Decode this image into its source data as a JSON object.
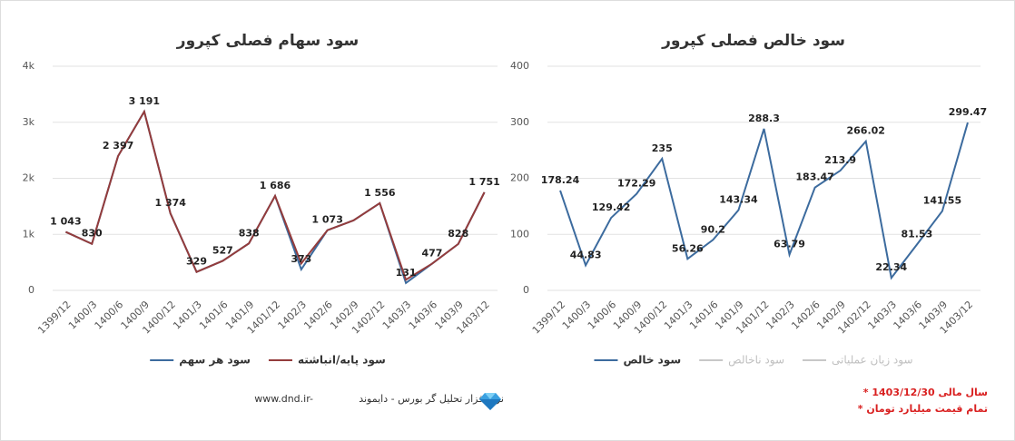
{
  "chart_data": [
    {
      "type": "line",
      "title": "سود سهام فصلی کپرور",
      "categories": [
        "1399/12",
        "1400/3",
        "1400/6",
        "1400/9",
        "1400/12",
        "1401/3",
        "1401/6",
        "1401/9",
        "1401/12",
        "1402/3",
        "1402/6",
        "1402/9",
        "1402/12",
        "1403/3",
        "1403/6",
        "1403/9",
        "1403/12"
      ],
      "series": [
        {
          "name": "سود هر سهم",
          "color": "#3c6b9e",
          "values": [
            1043,
            830,
            2397,
            3191,
            1374,
            329,
            527,
            838,
            1686,
            373,
            1073,
            1250,
            1556,
            131,
            477,
            828,
            1751
          ],
          "value_labels": [
            "1 043",
            "830",
            "2 397",
            "3 191",
            "1 374",
            "329",
            "527",
            "838",
            "1 686",
            "373",
            "1 073",
            null,
            "1 556",
            "131",
            "477",
            "828",
            "1 751"
          ]
        },
        {
          "name": "سود پایه/انباشته",
          "color": "#943c3c",
          "values": [
            1043,
            830,
            2397,
            3191,
            1374,
            329,
            527,
            838,
            1686,
            480,
            1073,
            1250,
            1556,
            190,
            477,
            828,
            1751
          ]
        }
      ],
      "ylim": [
        0,
        4000
      ],
      "yticks": [
        0,
        {
          "value": 1000,
          "label": "1k"
        },
        {
          "value": 2000,
          "label": "2k"
        },
        {
          "value": 3000,
          "label": "3k"
        },
        {
          "value": 4000,
          "label": "4k"
        }
      ],
      "grid": true
    },
    {
      "type": "line",
      "title": "سود خالص فصلی کپرور",
      "categories": [
        "1399/12",
        "1400/3",
        "1400/6",
        "1400/9",
        "1400/12",
        "1401/3",
        "1401/6",
        "1401/9",
        "1401/12",
        "1402/3",
        "1402/6",
        "1402/9",
        "1402/12",
        "1403/3",
        "1403/6",
        "1403/9",
        "1403/12"
      ],
      "series": [
        {
          "name": "سود خالص",
          "color": "#3c6b9e",
          "values": [
            178.24,
            44.83,
            129.42,
            172.29,
            235,
            56.26,
            90.2,
            143.34,
            288.3,
            63.79,
            183.47,
            213.9,
            266.02,
            22.34,
            81.53,
            141.55,
            299.47
          ]
        },
        {
          "name": "سود ناخالص",
          "color": "#c8c8c8",
          "hidden": true,
          "values": [
            null,
            null,
            null,
            null,
            null,
            null,
            null,
            null,
            null,
            null,
            null,
            null,
            null,
            null,
            null,
            null,
            null
          ]
        },
        {
          "name": "سود زیان عملیاتی",
          "color": "#c8c8c8",
          "hidden": true,
          "values": [
            null,
            null,
            null,
            null,
            null,
            null,
            null,
            null,
            null,
            null,
            null,
            null,
            null,
            null,
            null,
            null,
            null
          ]
        }
      ],
      "ylim": [
        0,
        400
      ],
      "yticks": [
        0,
        100,
        200,
        300,
        400
      ],
      "grid": true
    }
  ],
  "footer": {
    "text": "نرم افزار تحلیل گر بورس - دایموند",
    "url": "www.dnd.ir-"
  },
  "notes": [
    "* سال مالی 1403/12/30",
    "* تمام قیمت میلیارد تومان"
  ]
}
